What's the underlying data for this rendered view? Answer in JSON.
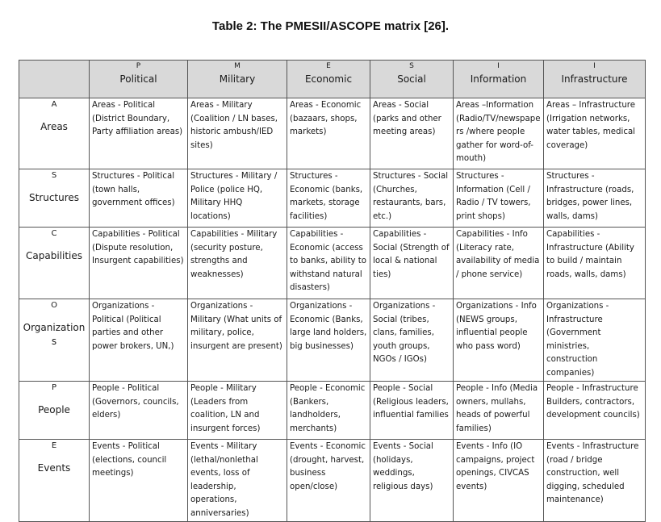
{
  "caption": "Table 2: The PMESII/ASCOPE matrix [26].",
  "columns": [
    {
      "letter": "P",
      "name": "Political"
    },
    {
      "letter": "M",
      "name": "Military"
    },
    {
      "letter": "E",
      "name": "Economic"
    },
    {
      "letter": "S",
      "name": "Social"
    },
    {
      "letter": "I",
      "name": "Information"
    },
    {
      "letter": "I",
      "name": "Infrastructure"
    }
  ],
  "rows": [
    {
      "letter": "A",
      "name": "Areas",
      "cells": [
        "Areas - Political (District Boundary, Party affiliation areas)",
        "Areas - Military (Coalition / LN bases, historic ambush/IED sites)",
        "Areas - Economic (bazaars, shops, markets)",
        "Areas - Social (parks and other meeting areas)",
        "Areas –Information (Radio/TV/newspape rs /where people gather for word-of-mouth)",
        "Areas – Infrastructure (Irrigation networks, water tables, medical coverage)"
      ]
    },
    {
      "letter": "S",
      "name": "Structures",
      "cells": [
        "Structures - Political (town halls, government offices)",
        "Structures - Military / Police (police HQ, Military HHQ locations)",
        "Structures - Economic (banks, markets, storage facilities)",
        "Structures - Social (Churches, restaurants, bars, etc.)",
        "Structures - Information (Cell / Radio / TV towers, print shops)",
        "Structures - Infrastructure (roads, bridges, power lines, walls, dams)"
      ]
    },
    {
      "letter": "C",
      "name": "Capabilities",
      "cells": [
        "Capabilities - Political (Dispute resolution, Insurgent capabilities)",
        "Capabilities - Military (security posture, strengths and weaknesses)",
        "Capabilities - Economic (access to banks, ability to withstand natural disasters)",
        "Capabilities - Social (Strength of local & national ties)",
        "Capabilities - Info (Literacy rate, availability of media / phone service)",
        "Capabilities - Infrastructure (Ability to build / maintain roads, walls, dams)"
      ]
    },
    {
      "letter": "O",
      "name": "Organizations",
      "cells": [
        "Organizations - Political (Political parties and other power brokers, UN,)",
        "Organizations - Military (What units of military, police, insurgent are present)",
        "Organizations - Economic (Banks, large land holders, big businesses)",
        "Organizations - Social (tribes, clans, families, youth groups, NGOs / IGOs)",
        "Organizations - Info (NEWS groups, influential people who pass word)",
        "Organizations - Infrastructure (Government ministries, construction companies)"
      ]
    },
    {
      "letter": "P",
      "name": "People",
      "cells": [
        "People - Political (Governors, councils, elders)",
        "People - Military (Leaders from coalition, LN and insurgent forces)",
        "People - Economic (Bankers, landholders, merchants)",
        "People - Social (Religious leaders, influential families",
        "People - Info (Media owners, mullahs, heads of powerful families)",
        "People - Infrastructure Builders, contractors, development councils)"
      ]
    },
    {
      "letter": "E",
      "name": "Events",
      "cells": [
        "Events - Political (elections, council meetings)",
        "Events - Military (lethal/nonlethal events, loss of leadership, operations, anniversaries)",
        "Events - Economic (drought, harvest, business open/close)",
        "Events - Social (holidays, weddings, religious days)",
        "Events - Info (IO campaigns, project openings, CIVCAS events)",
        "Events - Infrastructure (road / bridge construction, well digging, scheduled maintenance)"
      ]
    }
  ]
}
